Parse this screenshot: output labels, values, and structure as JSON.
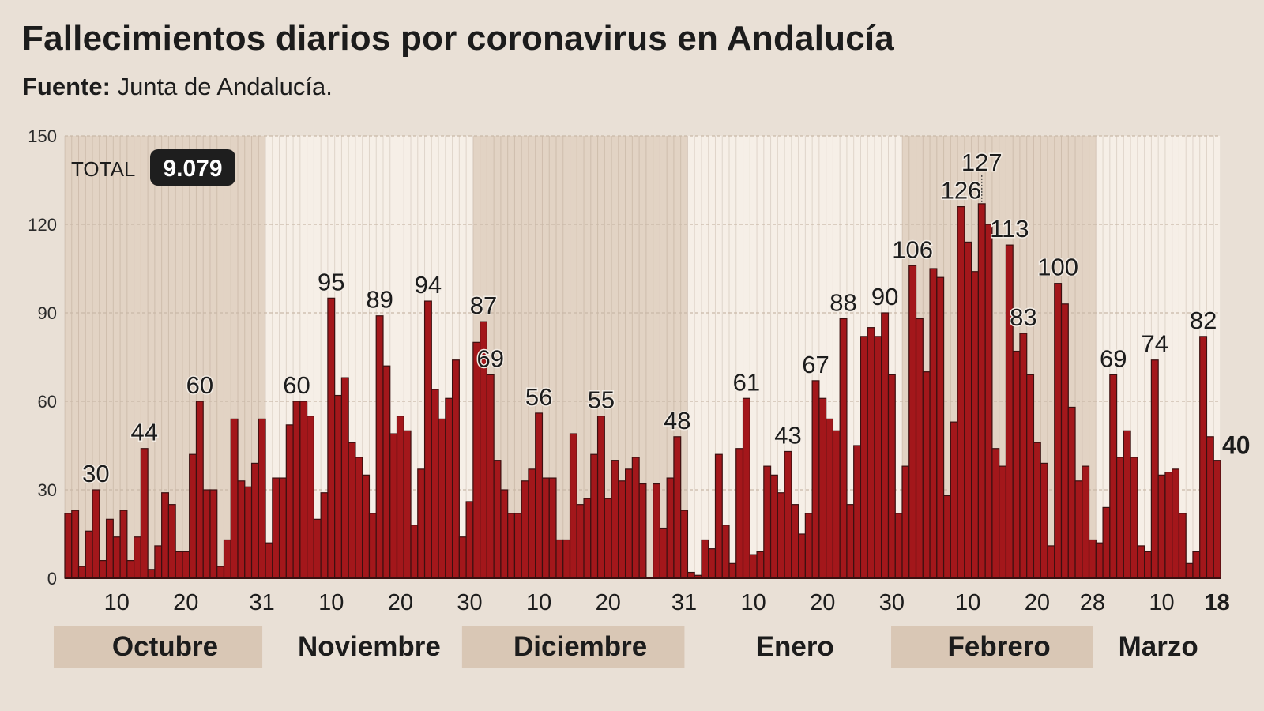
{
  "header": {
    "title": "Fallecimientos diarios por coronavirus en Andalucía",
    "source_label": "Fuente:",
    "source_value": "Junta de Andalucía."
  },
  "total": {
    "label": "TOTAL",
    "value": "9.079"
  },
  "colors": {
    "bar": "#a3171b",
    "bar_stroke": "#3b1010",
    "background": "#e9e0d6",
    "band_shaded": "#e2d3c4",
    "band_light": "#f6efe7",
    "badge": "#1e1e1e"
  },
  "chart_data": {
    "type": "bar",
    "title": "Fallecimientos diarios por coronavirus en Andalucía",
    "ylim": [
      0,
      150
    ],
    "yticks": [
      "0",
      "30",
      "60",
      "90",
      "120",
      "150"
    ],
    "grid": true,
    "months": [
      {
        "name": "Octubre",
        "shaded": true,
        "start_day": 3,
        "ticks": [
          "10",
          "20",
          "31"
        ],
        "values": [
          22,
          23,
          4,
          16,
          30,
          6,
          20,
          14,
          23,
          6,
          14,
          44,
          3,
          11,
          29,
          25,
          9,
          9,
          42,
          60,
          30,
          30,
          4,
          13,
          54,
          33,
          31,
          39,
          54
        ]
      },
      {
        "name": "Noviembre",
        "shaded": false,
        "start_day": 1,
        "ticks": [
          "10",
          "20",
          "30"
        ],
        "values": [
          12,
          34,
          34,
          52,
          60,
          60,
          55,
          20,
          29,
          95,
          62,
          68,
          46,
          41,
          35,
          22,
          89,
          72,
          49,
          55,
          50,
          18,
          37,
          94,
          64,
          54,
          61,
          74,
          14,
          26
        ]
      },
      {
        "name": "Diciembre",
        "shaded": true,
        "start_day": 1,
        "ticks": [
          "10",
          "20",
          "31"
        ],
        "values": [
          80,
          87,
          69,
          40,
          30,
          22,
          22,
          33,
          37,
          56,
          34,
          34,
          13,
          13,
          49,
          25,
          27,
          42,
          55,
          27,
          40,
          33,
          37,
          41,
          32,
          0,
          32,
          17,
          34,
          48,
          23
        ]
      },
      {
        "name": "Enero",
        "shaded": false,
        "start_day": 1,
        "ticks": [
          "10",
          "20",
          "30"
        ],
        "values": [
          2,
          1,
          13,
          10,
          42,
          18,
          5,
          44,
          61,
          8,
          9,
          38,
          35,
          29,
          43,
          25,
          15,
          22,
          67,
          61,
          54,
          50,
          88,
          25,
          45,
          82,
          85,
          82,
          90,
          69,
          22
        ]
      },
      {
        "name": "Febrero",
        "shaded": true,
        "start_day": 1,
        "ticks": [
          "10",
          "20",
          "28"
        ],
        "values": [
          38,
          106,
          88,
          70,
          105,
          102,
          28,
          53,
          126,
          114,
          104,
          127,
          120,
          44,
          38,
          113,
          77,
          83,
          69,
          46,
          39,
          11,
          100,
          93,
          58,
          33,
          38,
          13
        ]
      },
      {
        "name": "Marzo",
        "shaded": false,
        "start_day": 1,
        "ticks": [
          "10",
          "18"
        ],
        "values": [
          12,
          24,
          69,
          41,
          50,
          41,
          11,
          9,
          74,
          35,
          36,
          37,
          22,
          5,
          9,
          82,
          48,
          40
        ]
      }
    ],
    "annotations": [
      {
        "month": 0,
        "day": 7,
        "text": "30"
      },
      {
        "month": 0,
        "day": 14,
        "text": "44"
      },
      {
        "month": 0,
        "day": 22,
        "text": "60"
      },
      {
        "month": 1,
        "day": 5,
        "text": "60"
      },
      {
        "month": 1,
        "day": 10,
        "text": "95"
      },
      {
        "month": 1,
        "day": 17,
        "text": "89"
      },
      {
        "month": 1,
        "day": 24,
        "text": "94"
      },
      {
        "month": 2,
        "day": 2,
        "text": "87"
      },
      {
        "month": 2,
        "day": 3,
        "text": "69"
      },
      {
        "month": 2,
        "day": 10,
        "text": "56"
      },
      {
        "month": 2,
        "day": 19,
        "text": "55"
      },
      {
        "month": 2,
        "day": 30,
        "text": "48"
      },
      {
        "month": 3,
        "day": 9,
        "text": "61"
      },
      {
        "month": 3,
        "day": 15,
        "text": "43"
      },
      {
        "month": 3,
        "day": 19,
        "text": "67"
      },
      {
        "month": 3,
        "day": 23,
        "text": "88"
      },
      {
        "month": 3,
        "day": 29,
        "text": "90"
      },
      {
        "month": 4,
        "day": 2,
        "text": "106"
      },
      {
        "month": 4,
        "day": 9,
        "text": "126"
      },
      {
        "month": 4,
        "day": 12,
        "text": "127",
        "leader": true
      },
      {
        "month": 4,
        "day": 16,
        "text": "113"
      },
      {
        "month": 4,
        "day": 18,
        "text": "83"
      },
      {
        "month": 4,
        "day": 23,
        "text": "100"
      },
      {
        "month": 5,
        "day": 3,
        "text": "69"
      },
      {
        "month": 5,
        "day": 9,
        "text": "74"
      },
      {
        "month": 5,
        "day": 16,
        "text": "82"
      },
      {
        "month": 5,
        "day": 18,
        "text": "40",
        "bold": true,
        "side": "right"
      }
    ]
  }
}
